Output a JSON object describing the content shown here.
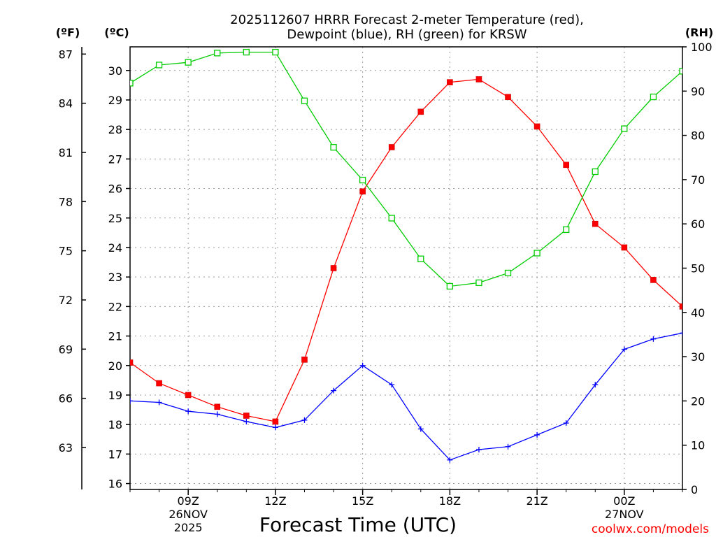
{
  "chart_data": {
    "type": "line",
    "title_line1": "2025112607 HRRR Forecast 2-meter Temperature (red),",
    "title_line2": "Dewpoint (blue), RH (green) for KRSW",
    "xlabel": "Forecast Time (UTC)",
    "credit": "coolwx.com/models",
    "units": {
      "fahrenheit": "(ºF)",
      "celsius": "(ºC)",
      "rh": "(RH)"
    },
    "x_hours": [
      7,
      8,
      9,
      10,
      11,
      12,
      13,
      14,
      15,
      16,
      17,
      18,
      19,
      20,
      21,
      22,
      23,
      24,
      25,
      26
    ],
    "xlim": [
      7,
      26
    ],
    "x_ticks": [
      {
        "hour": 9,
        "label": "09Z",
        "date": "26NOV",
        "year": "2025"
      },
      {
        "hour": 12,
        "label": "12Z"
      },
      {
        "hour": 15,
        "label": "15Z"
      },
      {
        "hour": 18,
        "label": "18Z"
      },
      {
        "hour": 21,
        "label": "21Z"
      },
      {
        "hour": 24,
        "label": "00Z",
        "date": "27NOV"
      }
    ],
    "celsius_axis": {
      "ylim": [
        15.8,
        30.8
      ],
      "ticks": [
        16,
        17,
        18,
        19,
        20,
        21,
        22,
        23,
        24,
        25,
        26,
        27,
        28,
        29,
        30
      ]
    },
    "fahrenheit_axis": {
      "ticks": [
        63,
        66,
        69,
        72,
        75,
        78,
        81,
        84,
        87
      ]
    },
    "rh_axis": {
      "ylim": [
        0,
        100
      ],
      "ticks": [
        0,
        10,
        20,
        30,
        40,
        50,
        60,
        70,
        80,
        90,
        100
      ]
    },
    "series": [
      {
        "name": "Temperature",
        "color": "#ff0000",
        "axis": "celsius",
        "marker": "filled-square",
        "values": [
          20.1,
          19.4,
          19.0,
          18.6,
          18.3,
          18.1,
          20.2,
          23.3,
          25.9,
          27.4,
          28.6,
          29.6,
          29.7,
          29.1,
          28.1,
          26.8,
          24.8,
          24.0,
          22.9,
          22.0
        ]
      },
      {
        "name": "Dewpoint",
        "color": "#0000ff",
        "axis": "celsius",
        "marker": "plus",
        "values": [
          18.8,
          18.75,
          18.45,
          18.35,
          18.1,
          17.9,
          18.15,
          19.15,
          20.0,
          19.35,
          17.85,
          16.8,
          17.15,
          17.25,
          17.65,
          18.05,
          19.35,
          20.55,
          20.9,
          21.1
        ]
      },
      {
        "name": "RH",
        "color": "#00cc00",
        "axis": "rh",
        "marker": "open-square",
        "values": [
          91.8,
          95.9,
          96.5,
          98.6,
          98.8,
          98.8,
          87.8,
          77.3,
          69.9,
          61.3,
          52.1,
          45.9,
          46.7,
          48.9,
          53.4,
          58.7,
          71.8,
          81.5,
          88.7,
          94.5
        ]
      }
    ]
  }
}
